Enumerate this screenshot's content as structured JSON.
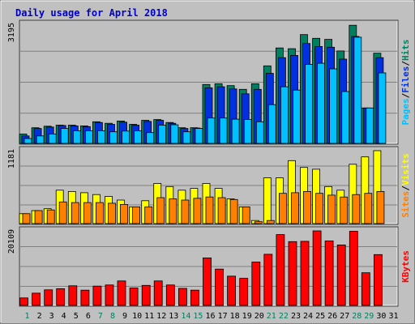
{
  "chart_data": {
    "type": "bar",
    "title": "Daily usage for April 2018",
    "x": [
      "1",
      "2",
      "3",
      "4",
      "5",
      "6",
      "7",
      "8",
      "9",
      "10",
      "11",
      "12",
      "13",
      "14",
      "15",
      "16",
      "17",
      "18",
      "19",
      "20",
      "21",
      "22",
      "23",
      "24",
      "25",
      "26",
      "27",
      "28",
      "29",
      "30",
      "31"
    ],
    "weekend_days": [
      "1",
      "7",
      "8",
      "14",
      "15",
      "21",
      "22",
      "28",
      "29"
    ],
    "panels": [
      {
        "name": "hits-files-pages",
        "ylabel": "3195",
        "ymax": 3195,
        "legend": [
          "Pages",
          "/",
          "Files",
          "/",
          "Hits"
        ],
        "legend_colors": [
          "#00c0ff",
          "#000000",
          "#0030e0",
          "#000000",
          "#008060"
        ],
        "series": [
          {
            "name": "Hits",
            "color": "#008060",
            "values": [
              250,
              420,
              460,
              490,
              490,
              470,
              580,
              540,
              600,
              510,
              620,
              640,
              560,
              420,
              420,
              1580,
              1600,
              1550,
              1450,
              1600,
              2080,
              2560,
              2540,
              2920,
              2820,
              2790,
              2480,
              3170,
              950,
              2420,
              0
            ]
          },
          {
            "name": "Files",
            "color": "#0030e0",
            "values": [
              200,
              400,
              440,
              480,
              470,
              450,
              560,
              510,
              570,
              490,
              590,
              620,
              540,
              400,
              410,
              1490,
              1520,
              1460,
              1330,
              1450,
              1880,
              2300,
              2360,
              2680,
              2600,
              2580,
              2260,
              2870,
              950,
              2300,
              0
            ]
          },
          {
            "name": "Pages",
            "color": "#00c0ff",
            "values": [
              130,
              200,
              250,
              400,
              340,
              340,
              340,
              310,
              330,
              340,
              290,
              490,
              500,
              310,
              400,
              680,
              680,
              650,
              640,
              580,
              1040,
              1520,
              1430,
              2120,
              2150,
              2000,
              1390,
              2850,
              950,
              1890,
              0
            ]
          }
        ]
      },
      {
        "name": "visits-sites",
        "ylabel": "1181",
        "ymax": 1181,
        "legend": [
          "Sites",
          "/",
          "Visits"
        ],
        "legend_colors": [
          "#ff8000",
          "#000000",
          "#ffff00"
        ],
        "series": [
          {
            "name": "Visits",
            "color": "#ffff00",
            "values": [
              160,
              210,
              240,
              540,
              520,
              500,
              470,
              440,
              380,
              270,
              370,
              650,
              600,
              540,
              570,
              650,
              570,
              400,
              270,
              50,
              740,
              740,
              1020,
              910,
              880,
              600,
              540,
              960,
              1080,
              1181,
              0
            ]
          },
          {
            "name": "Sites",
            "color": "#ff8000",
            "values": [
              160,
              210,
              220,
              350,
              340,
              340,
              340,
              330,
              310,
              270,
              270,
              420,
              400,
              380,
              410,
              430,
              420,
              390,
              270,
              30,
              50,
              490,
              500,
              520,
              490,
              460,
              430,
              470,
              490,
              520,
              0
            ]
          }
        ]
      },
      {
        "name": "kbytes",
        "ylabel": "20109",
        "ymax": 20109,
        "legend": [
          "KBytes"
        ],
        "legend_colors": [
          "#ff0000"
        ],
        "series": [
          {
            "name": "KBytes",
            "color": "#ff0000",
            "values": [
              2000,
              3300,
              4200,
              4500,
              5300,
              4100,
              5200,
              5500,
              6600,
              4700,
              5400,
              6600,
              5500,
              4600,
              4100,
              12800,
              9800,
              7900,
              7300,
              11700,
              13800,
              19100,
              17200,
              17300,
              20109,
              17400,
              16300,
              20000,
              8800,
              13700,
              0
            ]
          }
        ]
      }
    ]
  }
}
